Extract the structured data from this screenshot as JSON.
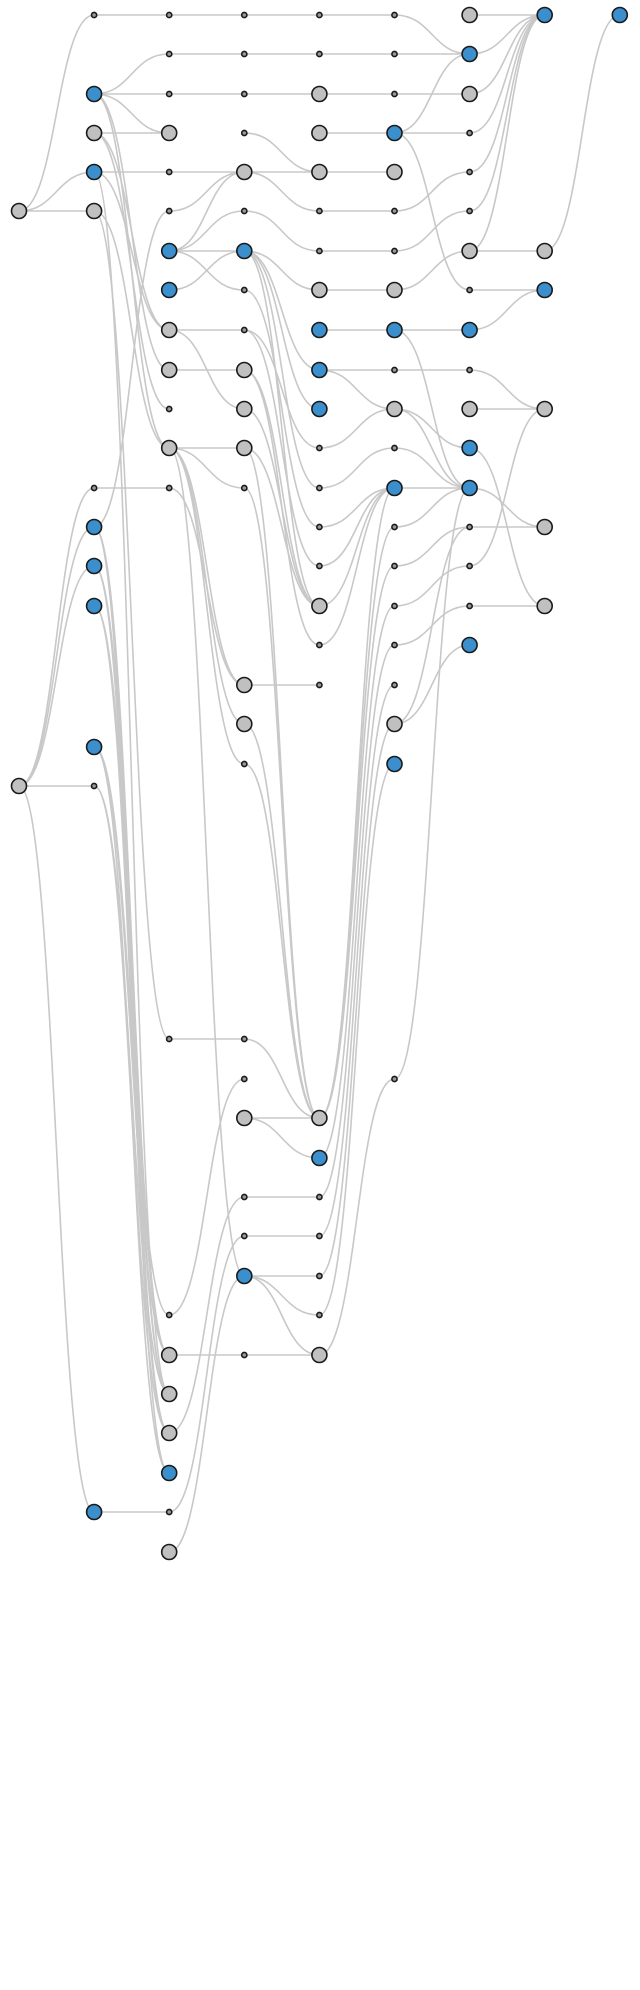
{
  "palette": {
    "background": "#ffffff",
    "edge": "#c8c8c8",
    "node_stroke": "#1a1a1a",
    "gray": "#c0c0c0",
    "blue": "#3a8fcc",
    "dot_fill": "#9a9a9a"
  },
  "nodes": [
    {
      "id": "root_a",
      "col": 0,
      "row": 211,
      "kind": "gray"
    },
    {
      "id": "root_b",
      "col": 0,
      "row": 786,
      "kind": "gray"
    },
    {
      "id": "c1_d15",
      "col": 1,
      "row": 15,
      "kind": "dot"
    },
    {
      "id": "c1_b94",
      "col": 1,
      "row": 94,
      "kind": "blue"
    },
    {
      "id": "c1_g133",
      "col": 1,
      "row": 133,
      "kind": "gray"
    },
    {
      "id": "c1_b172",
      "col": 1,
      "row": 172,
      "kind": "blue"
    },
    {
      "id": "c1_g211",
      "col": 1,
      "row": 211,
      "kind": "gray"
    },
    {
      "id": "c1_d488",
      "col": 1,
      "row": 488,
      "kind": "dot"
    },
    {
      "id": "c1_b527",
      "col": 1,
      "row": 527,
      "kind": "blue"
    },
    {
      "id": "c1_b566",
      "col": 1,
      "row": 566,
      "kind": "blue"
    },
    {
      "id": "c1_b606",
      "col": 1,
      "row": 606,
      "kind": "blue"
    },
    {
      "id": "c1_b747",
      "col": 1,
      "row": 747,
      "kind": "blue"
    },
    {
      "id": "c1_d786",
      "col": 1,
      "row": 786,
      "kind": "dot"
    },
    {
      "id": "c1_b1512",
      "col": 1,
      "row": 1512,
      "kind": "blue"
    },
    {
      "id": "c2_d15",
      "col": 2,
      "row": 15,
      "kind": "dot"
    },
    {
      "id": "c2_d54",
      "col": 2,
      "row": 54,
      "kind": "dot"
    },
    {
      "id": "c2_d94",
      "col": 2,
      "row": 94,
      "kind": "dot"
    },
    {
      "id": "c2_g133",
      "col": 2,
      "row": 133,
      "kind": "gray"
    },
    {
      "id": "c2_d172",
      "col": 2,
      "row": 172,
      "kind": "dot"
    },
    {
      "id": "c2_d211",
      "col": 2,
      "row": 211,
      "kind": "dot"
    },
    {
      "id": "c2_b251",
      "col": 2,
      "row": 251,
      "kind": "blue"
    },
    {
      "id": "c2_b290",
      "col": 2,
      "row": 290,
      "kind": "blue"
    },
    {
      "id": "c2_g330",
      "col": 2,
      "row": 330,
      "kind": "gray"
    },
    {
      "id": "c2_g370",
      "col": 2,
      "row": 370,
      "kind": "gray"
    },
    {
      "id": "c2_d409",
      "col": 2,
      "row": 409,
      "kind": "dot"
    },
    {
      "id": "c2_g448",
      "col": 2,
      "row": 448,
      "kind": "gray"
    },
    {
      "id": "c2_d488",
      "col": 2,
      "row": 488,
      "kind": "dot"
    },
    {
      "id": "c2_d1039",
      "col": 2,
      "row": 1039,
      "kind": "dot"
    },
    {
      "id": "c2_d1315",
      "col": 2,
      "row": 1315,
      "kind": "dot"
    },
    {
      "id": "c2_g1355",
      "col": 2,
      "row": 1355,
      "kind": "gray"
    },
    {
      "id": "c2_g1394",
      "col": 2,
      "row": 1394,
      "kind": "gray"
    },
    {
      "id": "c2_g1433",
      "col": 2,
      "row": 1433,
      "kind": "gray"
    },
    {
      "id": "c2_b1473",
      "col": 2,
      "row": 1473,
      "kind": "blue"
    },
    {
      "id": "c2_d1512",
      "col": 2,
      "row": 1512,
      "kind": "dot"
    },
    {
      "id": "c2_g1552",
      "col": 2,
      "row": 1552,
      "kind": "gray"
    },
    {
      "id": "c3_d15",
      "col": 3,
      "row": 15,
      "kind": "dot"
    },
    {
      "id": "c3_d54",
      "col": 3,
      "row": 54,
      "kind": "dot"
    },
    {
      "id": "c3_d94",
      "col": 3,
      "row": 94,
      "kind": "dot"
    },
    {
      "id": "c3_d133",
      "col": 3,
      "row": 133,
      "kind": "dot"
    },
    {
      "id": "c3_g172",
      "col": 3,
      "row": 172,
      "kind": "gray"
    },
    {
      "id": "c3_d211",
      "col": 3,
      "row": 211,
      "kind": "dot"
    },
    {
      "id": "c3_b251",
      "col": 3,
      "row": 251,
      "kind": "blue"
    },
    {
      "id": "c3_d290",
      "col": 3,
      "row": 290,
      "kind": "dot"
    },
    {
      "id": "c3_d330",
      "col": 3,
      "row": 330,
      "kind": "dot"
    },
    {
      "id": "c3_g370",
      "col": 3,
      "row": 370,
      "kind": "gray"
    },
    {
      "id": "c3_g409",
      "col": 3,
      "row": 409,
      "kind": "gray"
    },
    {
      "id": "c3_g448",
      "col": 3,
      "row": 448,
      "kind": "gray"
    },
    {
      "id": "c3_d488",
      "col": 3,
      "row": 488,
      "kind": "dot"
    },
    {
      "id": "c3_g685",
      "col": 3,
      "row": 685,
      "kind": "gray"
    },
    {
      "id": "c3_g724",
      "col": 3,
      "row": 724,
      "kind": "gray"
    },
    {
      "id": "c3_d764",
      "col": 3,
      "row": 764,
      "kind": "dot"
    },
    {
      "id": "c3_d1039",
      "col": 3,
      "row": 1039,
      "kind": "dot"
    },
    {
      "id": "c3_d1079",
      "col": 3,
      "row": 1079,
      "kind": "dot"
    },
    {
      "id": "c3_g1118",
      "col": 3,
      "row": 1118,
      "kind": "gray"
    },
    {
      "id": "c3_d1197",
      "col": 3,
      "row": 1197,
      "kind": "dot"
    },
    {
      "id": "c3_d1236",
      "col": 3,
      "row": 1236,
      "kind": "dot"
    },
    {
      "id": "c3_b1276",
      "col": 3,
      "row": 1276,
      "kind": "blue"
    },
    {
      "id": "c3_d1355",
      "col": 3,
      "row": 1355,
      "kind": "dot"
    },
    {
      "id": "c4_d15",
      "col": 4,
      "row": 15,
      "kind": "dot"
    },
    {
      "id": "c4_d54",
      "col": 4,
      "row": 54,
      "kind": "dot"
    },
    {
      "id": "c4_g94",
      "col": 4,
      "row": 94,
      "kind": "gray"
    },
    {
      "id": "c4_g133",
      "col": 4,
      "row": 133,
      "kind": "gray"
    },
    {
      "id": "c4_g172",
      "col": 4,
      "row": 172,
      "kind": "gray"
    },
    {
      "id": "c4_d211",
      "col": 4,
      "row": 211,
      "kind": "dot"
    },
    {
      "id": "c4_d251",
      "col": 4,
      "row": 251,
      "kind": "dot"
    },
    {
      "id": "c4_g290",
      "col": 4,
      "row": 290,
      "kind": "gray"
    },
    {
      "id": "c4_b330",
      "col": 4,
      "row": 330,
      "kind": "blue"
    },
    {
      "id": "c4_b370",
      "col": 4,
      "row": 370,
      "kind": "blue"
    },
    {
      "id": "c4_b409",
      "col": 4,
      "row": 409,
      "kind": "blue"
    },
    {
      "id": "c4_d448",
      "col": 4,
      "row": 448,
      "kind": "dot"
    },
    {
      "id": "c4_d488",
      "col": 4,
      "row": 488,
      "kind": "dot"
    },
    {
      "id": "c4_d527",
      "col": 4,
      "row": 527,
      "kind": "dot"
    },
    {
      "id": "c4_d566",
      "col": 4,
      "row": 566,
      "kind": "dot"
    },
    {
      "id": "c4_g606",
      "col": 4,
      "row": 606,
      "kind": "gray"
    },
    {
      "id": "c4_d645",
      "col": 4,
      "row": 645,
      "kind": "dot"
    },
    {
      "id": "c4_d685",
      "col": 4,
      "row": 685,
      "kind": "dot"
    },
    {
      "id": "c4_g1118",
      "col": 4,
      "row": 1118,
      "kind": "gray"
    },
    {
      "id": "c4_b1158",
      "col": 4,
      "row": 1158,
      "kind": "blue"
    },
    {
      "id": "c4_d1197",
      "col": 4,
      "row": 1197,
      "kind": "dot"
    },
    {
      "id": "c4_d1236",
      "col": 4,
      "row": 1236,
      "kind": "dot"
    },
    {
      "id": "c4_d1276",
      "col": 4,
      "row": 1276,
      "kind": "dot"
    },
    {
      "id": "c4_d1315",
      "col": 4,
      "row": 1315,
      "kind": "dot"
    },
    {
      "id": "c4_g1355",
      "col": 4,
      "row": 1355,
      "kind": "gray"
    },
    {
      "id": "c5_d15",
      "col": 5,
      "row": 15,
      "kind": "dot"
    },
    {
      "id": "c5_d54",
      "col": 5,
      "row": 54,
      "kind": "dot"
    },
    {
      "id": "c5_d94",
      "col": 5,
      "row": 94,
      "kind": "dot"
    },
    {
      "id": "c5_b133",
      "col": 5,
      "row": 133,
      "kind": "blue"
    },
    {
      "id": "c5_g172",
      "col": 5,
      "row": 172,
      "kind": "gray"
    },
    {
      "id": "c5_d211",
      "col": 5,
      "row": 211,
      "kind": "dot"
    },
    {
      "id": "c5_d251",
      "col": 5,
      "row": 251,
      "kind": "dot"
    },
    {
      "id": "c5_g290",
      "col": 5,
      "row": 290,
      "kind": "gray"
    },
    {
      "id": "c5_b330",
      "col": 5,
      "row": 330,
      "kind": "blue"
    },
    {
      "id": "c5_d370",
      "col": 5,
      "row": 370,
      "kind": "dot"
    },
    {
      "id": "c5_g409",
      "col": 5,
      "row": 409,
      "kind": "gray"
    },
    {
      "id": "c5_d448",
      "col": 5,
      "row": 448,
      "kind": "dot"
    },
    {
      "id": "c5_b488",
      "col": 5,
      "row": 488,
      "kind": "blue"
    },
    {
      "id": "c5_d527",
      "col": 5,
      "row": 527,
      "kind": "dot"
    },
    {
      "id": "c5_d566",
      "col": 5,
      "row": 566,
      "kind": "dot"
    },
    {
      "id": "c5_d606",
      "col": 5,
      "row": 606,
      "kind": "dot"
    },
    {
      "id": "c5_d645",
      "col": 5,
      "row": 645,
      "kind": "dot"
    },
    {
      "id": "c5_d685",
      "col": 5,
      "row": 685,
      "kind": "dot"
    },
    {
      "id": "c5_g724",
      "col": 5,
      "row": 724,
      "kind": "gray"
    },
    {
      "id": "c5_b764",
      "col": 5,
      "row": 764,
      "kind": "blue"
    },
    {
      "id": "c5_d1079",
      "col": 5,
      "row": 1079,
      "kind": "dot"
    },
    {
      "id": "c6_g15",
      "col": 6,
      "row": 15,
      "kind": "gray"
    },
    {
      "id": "c6_b54",
      "col": 6,
      "row": 54,
      "kind": "blue"
    },
    {
      "id": "c6_g94",
      "col": 6,
      "row": 94,
      "kind": "gray"
    },
    {
      "id": "c6_d133",
      "col": 6,
      "row": 133,
      "kind": "dot"
    },
    {
      "id": "c6_d172",
      "col": 6,
      "row": 172,
      "kind": "dot"
    },
    {
      "id": "c6_d211",
      "col": 6,
      "row": 211,
      "kind": "dot"
    },
    {
      "id": "c6_g251",
      "col": 6,
      "row": 251,
      "kind": "gray"
    },
    {
      "id": "c6_d290",
      "col": 6,
      "row": 290,
      "kind": "dot"
    },
    {
      "id": "c6_b330",
      "col": 6,
      "row": 330,
      "kind": "blue"
    },
    {
      "id": "c6_d370",
      "col": 6,
      "row": 370,
      "kind": "dot"
    },
    {
      "id": "c6_g409",
      "col": 6,
      "row": 409,
      "kind": "gray"
    },
    {
      "id": "c6_b448",
      "col": 6,
      "row": 448,
      "kind": "blue"
    },
    {
      "id": "c6_b488",
      "col": 6,
      "row": 488,
      "kind": "blue"
    },
    {
      "id": "c6_d527",
      "col": 6,
      "row": 527,
      "kind": "dot"
    },
    {
      "id": "c6_d566",
      "col": 6,
      "row": 566,
      "kind": "dot"
    },
    {
      "id": "c6_d606",
      "col": 6,
      "row": 606,
      "kind": "dot"
    },
    {
      "id": "c6_b645",
      "col": 6,
      "row": 645,
      "kind": "blue"
    },
    {
      "id": "c7_b15",
      "col": 7,
      "row": 15,
      "kind": "blue"
    },
    {
      "id": "c7_g251",
      "col": 7,
      "row": 251,
      "kind": "gray"
    },
    {
      "id": "c7_b290",
      "col": 7,
      "row": 290,
      "kind": "blue"
    },
    {
      "id": "c7_g409",
      "col": 7,
      "row": 409,
      "kind": "gray"
    },
    {
      "id": "c7_g527",
      "col": 7,
      "row": 527,
      "kind": "gray"
    },
    {
      "id": "c7_g606",
      "col": 7,
      "row": 606,
      "kind": "gray"
    },
    {
      "id": "c8_b15",
      "col": 8,
      "row": 15,
      "kind": "blue"
    }
  ],
  "edges": [
    [
      "root_a",
      "c1_d15"
    ],
    [
      "root_a",
      "c1_b172"
    ],
    [
      "root_a",
      "c1_g211"
    ],
    [
      "root_b",
      "c1_d488"
    ],
    [
      "root_b",
      "c1_b527"
    ],
    [
      "root_b",
      "c1_b566"
    ],
    [
      "root_b",
      "c1_d786"
    ],
    [
      "root_b",
      "c1_b1512"
    ],
    [
      "c1_d15",
      "c2_d15"
    ],
    [
      "c1_b94",
      "c2_d54"
    ],
    [
      "c1_b94",
      "c2_d94"
    ],
    [
      "c1_b94",
      "c2_g133"
    ],
    [
      "c1_b94",
      "c2_g370"
    ],
    [
      "c1_b94",
      "c2_g448"
    ],
    [
      "c1_g133",
      "c2_g133"
    ],
    [
      "c1_g133",
      "c2_g330"
    ],
    [
      "c1_g133",
      "c2_d409"
    ],
    [
      "c1_b172",
      "c2_d172"
    ],
    [
      "c1_b172",
      "c2_g330"
    ],
    [
      "c1_b172",
      "c2_g1394"
    ],
    [
      "c1_g211",
      "c2_g448"
    ],
    [
      "c1_g211",
      "c2_d1039"
    ],
    [
      "c1_d488",
      "c2_d488"
    ],
    [
      "c1_b527",
      "c2_d211"
    ],
    [
      "c1_b527",
      "c2_g1355"
    ],
    [
      "c1_b527",
      "c2_g1394"
    ],
    [
      "c1_b527",
      "c2_g1433"
    ],
    [
      "c1_b527",
      "c2_b1473"
    ],
    [
      "c1_b566",
      "c2_g1355"
    ],
    [
      "c1_b566",
      "c2_g1394"
    ],
    [
      "c1_b566",
      "c2_g1433"
    ],
    [
      "c1_b606",
      "c2_g1355"
    ],
    [
      "c1_b606",
      "c2_g1433"
    ],
    [
      "c1_b747",
      "c2_d1315"
    ],
    [
      "c1_b747",
      "c2_g1355"
    ],
    [
      "c1_b747",
      "c2_b1473"
    ],
    [
      "c1_d786",
      "c2_g1394"
    ],
    [
      "c1_d786",
      "c2_g1433"
    ],
    [
      "c1_b1512",
      "c2_d1512"
    ],
    [
      "c2_d15",
      "c3_d15"
    ],
    [
      "c2_d54",
      "c3_d54"
    ],
    [
      "c2_d94",
      "c3_d94"
    ],
    [
      "c2_d172",
      "c3_g172"
    ],
    [
      "c2_d211",
      "c3_g172"
    ],
    [
      "c2_b251",
      "c3_g172"
    ],
    [
      "c2_b251",
      "c3_d211"
    ],
    [
      "c2_b251",
      "c3_b251"
    ],
    [
      "c2_b251",
      "c3_d290"
    ],
    [
      "c2_b290",
      "c3_b251"
    ],
    [
      "c2_g330",
      "c3_d330"
    ],
    [
      "c2_g330",
      "c3_g409"
    ],
    [
      "c2_g370",
      "c3_g370"
    ],
    [
      "c2_g448",
      "c3_g448"
    ],
    [
      "c2_g448",
      "c3_d488"
    ],
    [
      "c2_g448",
      "c3_g685"
    ],
    [
      "c2_g448",
      "c3_g724"
    ],
    [
      "c2_g448",
      "c3_d764"
    ],
    [
      "c2_g448",
      "c3_b1276"
    ],
    [
      "c2_d488",
      "c3_g685"
    ],
    [
      "c2_d1039",
      "c3_d1039"
    ],
    [
      "c2_d1315",
      "c3_d1079"
    ],
    [
      "c2_g1355",
      "c3_d1355"
    ],
    [
      "c2_g1433",
      "c3_d1197"
    ],
    [
      "c2_d1512",
      "c3_d1236"
    ],
    [
      "c2_g1552",
      "c3_b1276"
    ],
    [
      "c3_d15",
      "c4_d15"
    ],
    [
      "c3_d54",
      "c4_d54"
    ],
    [
      "c3_d94",
      "c4_g94"
    ],
    [
      "c3_d133",
      "c4_g172"
    ],
    [
      "c3_g172",
      "c4_g172"
    ],
    [
      "c3_g172",
      "c4_d211"
    ],
    [
      "c3_d211",
      "c4_d251"
    ],
    [
      "c3_b251",
      "c4_g290"
    ],
    [
      "c3_b251",
      "c4_b370"
    ],
    [
      "c3_b251",
      "c4_b409"
    ],
    [
      "c3_b251",
      "c4_d488"
    ],
    [
      "c3_b251",
      "c4_g606"
    ],
    [
      "c3_d290",
      "c4_d527"
    ],
    [
      "c3_d330",
      "c4_d448"
    ],
    [
      "c3_d330",
      "c4_d566"
    ],
    [
      "c3_g370",
      "c4_g606"
    ],
    [
      "c3_g370",
      "c4_d645"
    ],
    [
      "c3_g409",
      "c4_g606"
    ],
    [
      "c3_g448",
      "c4_g606"
    ],
    [
      "c3_g448",
      "c4_g1118"
    ],
    [
      "c3_d488",
      "c4_g1118"
    ],
    [
      "c3_g685",
      "c4_d685"
    ],
    [
      "c3_g724",
      "c4_g1118"
    ],
    [
      "c3_d764",
      "c4_g1118"
    ],
    [
      "c3_d1039",
      "c4_g1118"
    ],
    [
      "c3_g1118",
      "c4_g1118"
    ],
    [
      "c3_g1118",
      "c4_b1158"
    ],
    [
      "c3_d1197",
      "c4_d1197"
    ],
    [
      "c3_d1236",
      "c4_d1236"
    ],
    [
      "c3_b1276",
      "c4_d1276"
    ],
    [
      "c3_b1276",
      "c4_d1315"
    ],
    [
      "c3_b1276",
      "c4_g1355"
    ],
    [
      "c3_d1355",
      "c4_g1355"
    ],
    [
      "c4_d15",
      "c5_d15"
    ],
    [
      "c4_d54",
      "c5_d54"
    ],
    [
      "c4_g94",
      "c5_d94"
    ],
    [
      "c4_g133",
      "c5_b133"
    ],
    [
      "c4_g172",
      "c5_g172"
    ],
    [
      "c4_d211",
      "c5_d211"
    ],
    [
      "c4_d251",
      "c5_d251"
    ],
    [
      "c4_g290",
      "c5_g290"
    ],
    [
      "c4_b330",
      "c5_b330"
    ],
    [
      "c4_b370",
      "c5_d370"
    ],
    [
      "c4_b370",
      "c5_g409"
    ],
    [
      "c4_d448",
      "c5_g409"
    ],
    [
      "c4_d488",
      "c5_d448"
    ],
    [
      "c4_d527",
      "c5_b488"
    ],
    [
      "c4_d566",
      "c5_b488"
    ],
    [
      "c4_g606",
      "c5_b488"
    ],
    [
      "c4_d645",
      "c5_b488"
    ],
    [
      "c4_g1118",
      "c5_b488"
    ],
    [
      "c4_g1118",
      "c5_d527"
    ],
    [
      "c4_g1118",
      "c5_d566"
    ],
    [
      "c4_b1158",
      "c5_d606"
    ],
    [
      "c4_d1197",
      "c5_d645"
    ],
    [
      "c4_d1236",
      "c5_d685"
    ],
    [
      "c4_d1276",
      "c5_g724"
    ],
    [
      "c4_d1315",
      "c5_b764"
    ],
    [
      "c4_g1355",
      "c5_d1079"
    ],
    [
      "c5_d15",
      "c6_b54"
    ],
    [
      "c5_d54",
      "c6_b54"
    ],
    [
      "c5_d94",
      "c6_g94"
    ],
    [
      "c5_b133",
      "c6_d133"
    ],
    [
      "c5_b133",
      "c6_b54"
    ],
    [
      "c5_b133",
      "c6_d290"
    ],
    [
      "c5_d211",
      "c6_d172"
    ],
    [
      "c5_d251",
      "c6_d211"
    ],
    [
      "c5_g290",
      "c6_g251"
    ],
    [
      "c5_b330",
      "c6_b330"
    ],
    [
      "c5_b330",
      "c6_b488"
    ],
    [
      "c5_d370",
      "c6_d370"
    ],
    [
      "c5_g409",
      "c6_b448"
    ],
    [
      "c5_g409",
      "c6_b488"
    ],
    [
      "c5_d448",
      "c6_b488"
    ],
    [
      "c5_b488",
      "c6_b488"
    ],
    [
      "c5_d527",
      "c6_b488"
    ],
    [
      "c5_d566",
      "c6_d527"
    ],
    [
      "c5_d606",
      "c6_d566"
    ],
    [
      "c5_d645",
      "c6_d606"
    ],
    [
      "c5_g724",
      "c6_b645"
    ],
    [
      "c5_g724",
      "c6_d527"
    ],
    [
      "c5_d1079",
      "c6_b488"
    ],
    [
      "c6_g15",
      "c7_b15"
    ],
    [
      "c6_b54",
      "c7_b15"
    ],
    [
      "c6_g94",
      "c7_b15"
    ],
    [
      "c6_d133",
      "c7_b15"
    ],
    [
      "c6_d172",
      "c7_b15"
    ],
    [
      "c6_d211",
      "c7_b15"
    ],
    [
      "c6_g251",
      "c7_b15"
    ],
    [
      "c6_g251",
      "c7_g251"
    ],
    [
      "c6_d290",
      "c7_b290"
    ],
    [
      "c6_b330",
      "c7_b290"
    ],
    [
      "c6_d370",
      "c7_g409"
    ],
    [
      "c6_g409",
      "c7_g409"
    ],
    [
      "c6_b448",
      "c7_g606"
    ],
    [
      "c6_b488",
      "c7_g527"
    ],
    [
      "c6_d527",
      "c7_g527"
    ],
    [
      "c6_d566",
      "c7_g409"
    ],
    [
      "c6_d606",
      "c7_g606"
    ],
    [
      "c7_g251",
      "c8_b15"
    ]
  ]
}
